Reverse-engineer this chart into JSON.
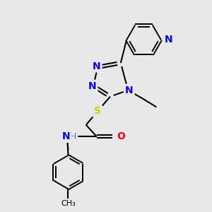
{
  "background_color": "#e8e8eb",
  "bond_color": "#000000",
  "atom_colors": {
    "N": "#0000ee",
    "S": "#cccc00",
    "O": "#ff0000",
    "C": "#000000",
    "H": "#4488aa"
  },
  "font_size": 9,
  "figsize": [
    3.0,
    3.0
  ],
  "dpi": 100
}
